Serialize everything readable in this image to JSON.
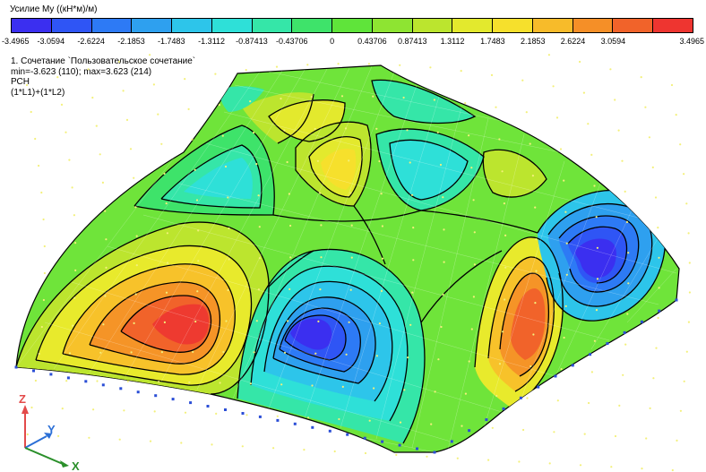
{
  "legend": {
    "title": "Усилие My ((кН*м)/м)",
    "tick_labels": [
      "-3.4965",
      "-3.0594",
      "-2.6224",
      "-2.1853",
      "-1.7483",
      "-1.3112",
      "-0.87413",
      "-0.43706",
      "0",
      "0.43706",
      "0.87413",
      "1.3112",
      "1.7483",
      "2.1853",
      "2.6224",
      "3.0594",
      "3.4965"
    ],
    "colors": [
      "#3b2ff0",
      "#2f55f5",
      "#2d7af5",
      "#2ea0ef",
      "#2dc5ea",
      "#2ee0d8",
      "#35e6a8",
      "#3ee36a",
      "#5fe43a",
      "#8ee432",
      "#bbe52e",
      "#e3e92d",
      "#f6e02c",
      "#f7bb2a",
      "#f58f27",
      "#f1632a",
      "#ee3530"
    ]
  },
  "info": {
    "line1": "1. Сочетание `Пользовательское сочетание`",
    "line2": "min=-3.623 (110); max=3.623 (214)",
    "line3": "РСН",
    "line4": "(1*L1)+(1*L2)"
  },
  "axes": {
    "x_label": "X",
    "y_label": "Y",
    "z_label": "Z",
    "x_color": "#2a8f2a",
    "y_color": "#2b6fd6",
    "z_color": "#e34a4a"
  }
}
